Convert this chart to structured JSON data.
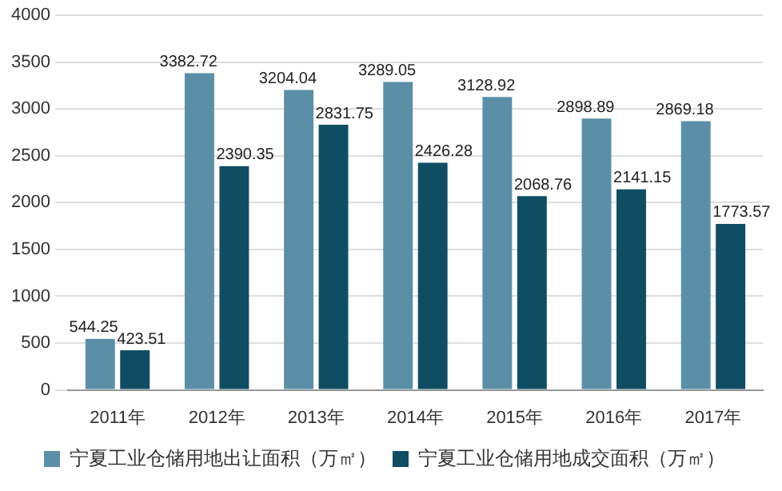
{
  "chart_data": {
    "type": "bar",
    "categories": [
      "2011年",
      "2012年",
      "2013年",
      "2014年",
      "2015年",
      "2016年",
      "2017年"
    ],
    "series": [
      {
        "name": "宁夏工业仓储用地出让面积（万㎡）",
        "color": "#5b8fa8",
        "values": [
          544.25,
          3382.72,
          3204.04,
          3289.05,
          3128.92,
          2898.89,
          2869.18
        ]
      },
      {
        "name": "宁夏工业仓储用地成交面积（万㎡）",
        "color": "#0f4d63",
        "values": [
          423.51,
          2390.35,
          2831.75,
          2426.28,
          2068.76,
          2141.15,
          1773.57
        ]
      }
    ],
    "ylim": [
      0,
      4000
    ],
    "yticks": [
      0,
      500,
      1000,
      1500,
      2000,
      2500,
      3000,
      3500,
      4000
    ],
    "grid": "y",
    "legend": "bottom",
    "data_labels": true
  }
}
